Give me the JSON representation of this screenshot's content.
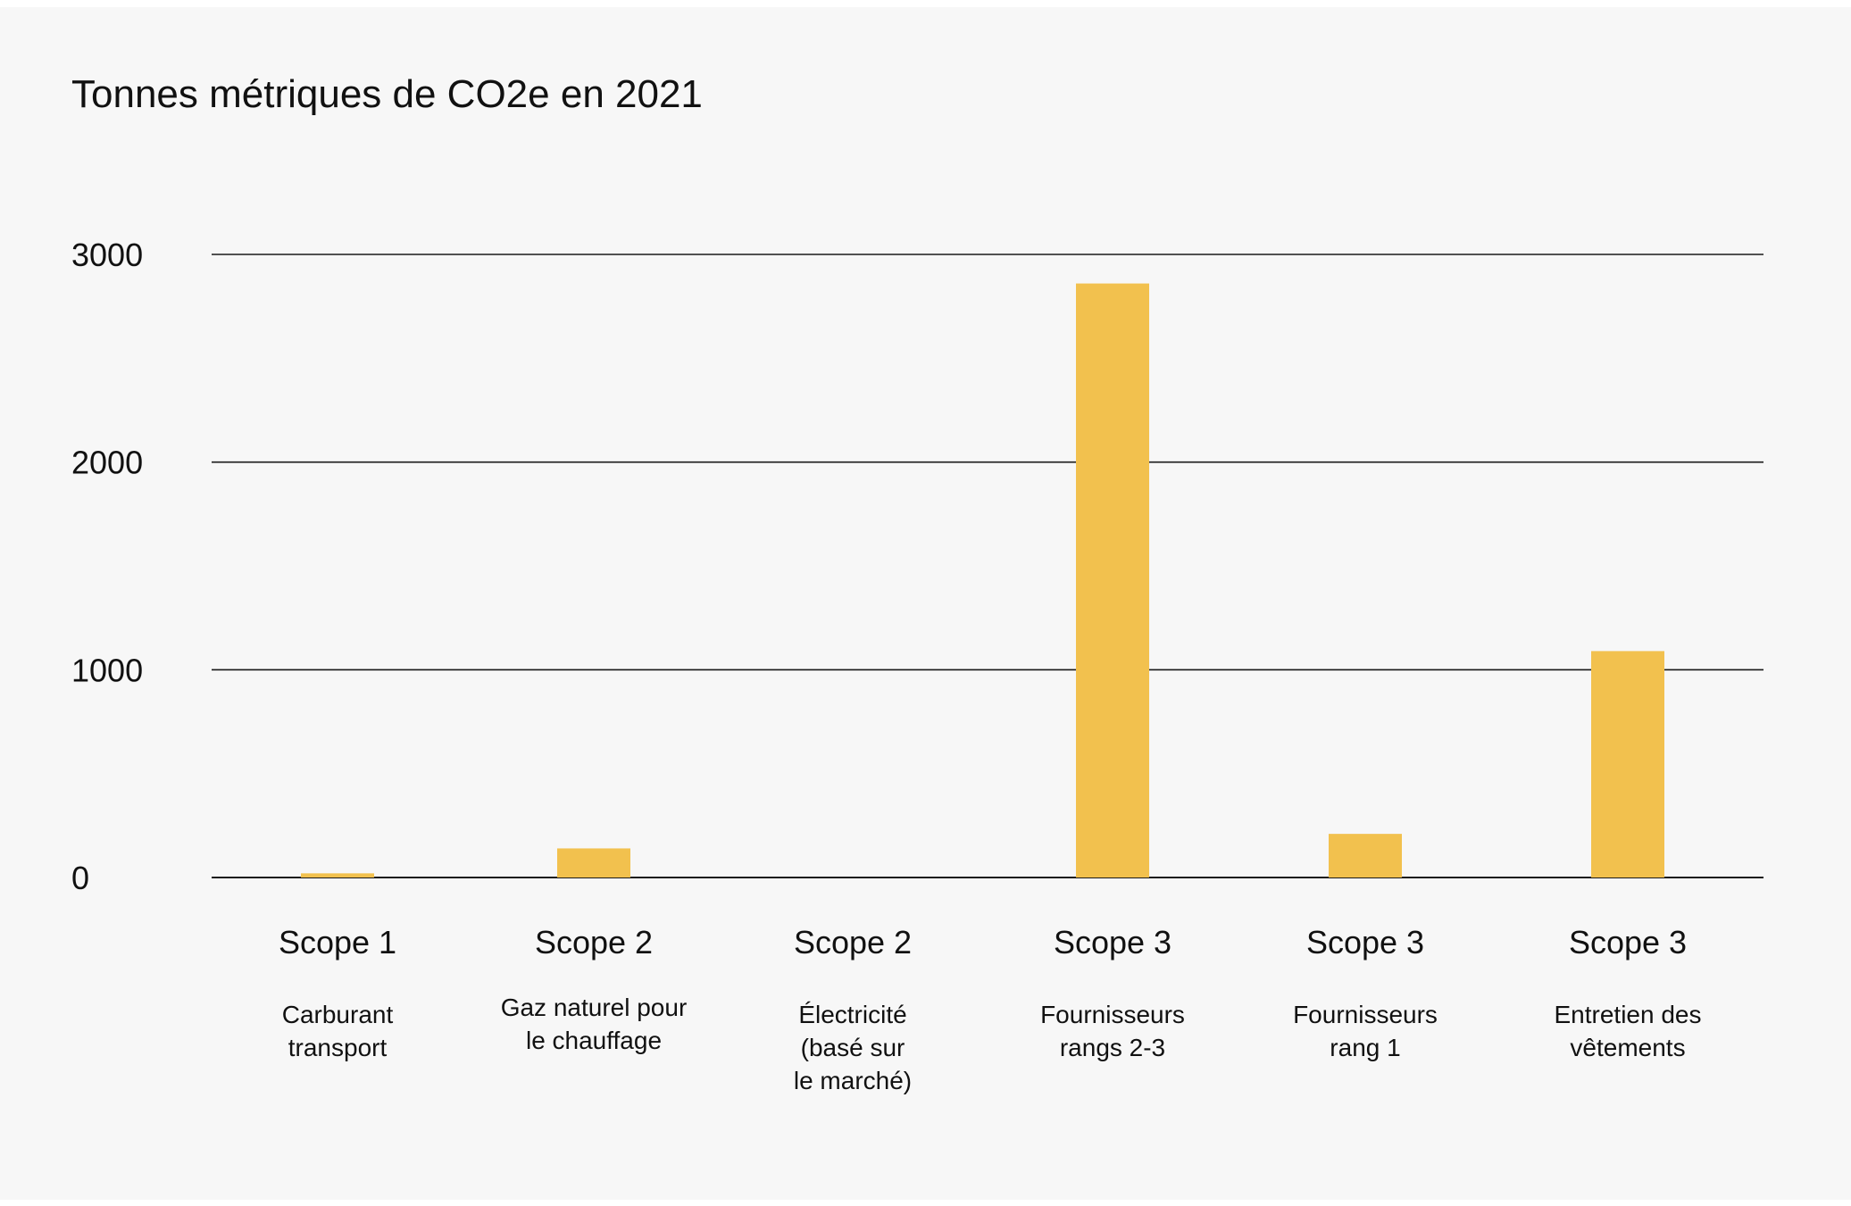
{
  "chart_data": {
    "type": "bar",
    "title": "Tonnes métriques de CO2e en 2021",
    "xlabel": "",
    "ylabel": "",
    "ylim": [
      0,
      3000
    ],
    "yticks": [
      0,
      1000,
      2000,
      3000
    ],
    "grid": true,
    "legend": "none",
    "bar_color": "#f2c14e",
    "categories": [
      {
        "label": "Scope 1",
        "sublabel": [
          "Carburant",
          "transport"
        ]
      },
      {
        "label": "Scope 2",
        "sublabel": [
          "Gaz naturel pour",
          "le chauffage"
        ]
      },
      {
        "label": "Scope 2",
        "sublabel": [
          "Électricité",
          "(basé sur",
          "le marché)"
        ]
      },
      {
        "label": "Scope 3",
        "sublabel": [
          "Fournisseurs",
          "rangs 2-3"
        ]
      },
      {
        "label": "Scope 3",
        "sublabel": [
          "Fournisseurs",
          "rang 1"
        ]
      },
      {
        "label": "Scope 3",
        "sublabel": [
          "Entretien des",
          "vêtements"
        ]
      }
    ],
    "values": [
      20,
      140,
      0,
      2860,
      210,
      1090
    ]
  }
}
